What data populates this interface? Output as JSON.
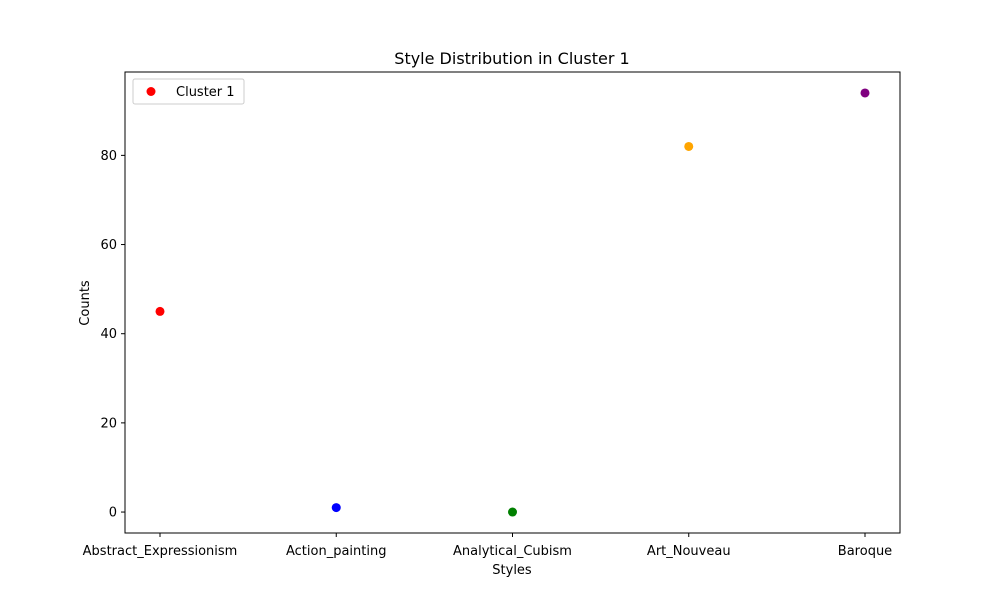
{
  "chart_data": {
    "type": "scatter",
    "title": "Style Distribution in Cluster 1",
    "xlabel": "Styles",
    "ylabel": "Counts",
    "categories": [
      "Abstract_Expressionism",
      "Action_painting",
      "Analytical_Cubism",
      "Art_Nouveau",
      "Baroque"
    ],
    "values": [
      45,
      1,
      0,
      82,
      94
    ],
    "point_colors": [
      "#ff0000",
      "#0000ff",
      "#008000",
      "#ffa500",
      "#800080"
    ],
    "ylim": [
      -4.7,
      98.7
    ],
    "yticks": [
      0,
      20,
      40,
      60,
      80
    ],
    "grid": false,
    "legend": {
      "position": "top-left",
      "entries": [
        {
          "label": "Cluster 1",
          "color": "#ff0000"
        }
      ]
    }
  }
}
